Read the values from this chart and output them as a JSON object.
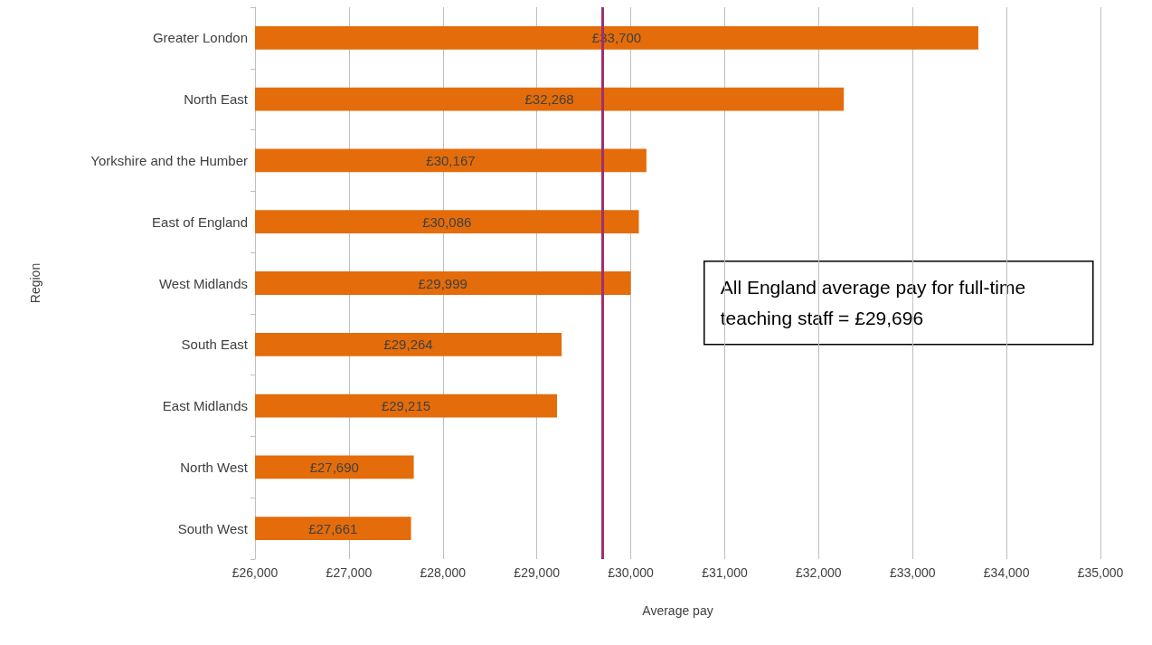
{
  "chart_data": {
    "type": "bar",
    "orientation": "horizontal",
    "xlabel": "Average pay",
    "ylabel": "Region",
    "categories": [
      "Greater London",
      "North East",
      "Yorkshire and the Humber",
      "East of England",
      "West Midlands",
      "South East",
      "East Midlands",
      "North West",
      "South West"
    ],
    "values": [
      33700,
      32268,
      30167,
      30086,
      29999,
      29264,
      29215,
      27690,
      27661
    ],
    "value_labels": [
      "£33,700",
      "£32,268",
      "£30,167",
      "£30,086",
      "£29,999",
      "£29,264",
      "£29,215",
      "£27,690",
      "£27,661"
    ],
    "color": "#e46c0a",
    "xlim": [
      26000,
      35000
    ],
    "xticks": [
      {
        "value": 26000,
        "label": "£26,000"
      },
      {
        "value": 27000,
        "label": "£27,000"
      },
      {
        "value": 28000,
        "label": "£28,000"
      },
      {
        "value": 29000,
        "label": "£29,000"
      },
      {
        "value": 30000,
        "label": "£30,000"
      },
      {
        "value": 31000,
        "label": "£31,000"
      },
      {
        "value": 32000,
        "label": "£32,000"
      },
      {
        "value": 33000,
        "label": "£33,000"
      },
      {
        "value": 34000,
        "label": "£34,000"
      },
      {
        "value": 35000,
        "label": "£35,000"
      }
    ],
    "grid": "x",
    "ref_lines": [
      {
        "axis": "x",
        "value": 29696,
        "color": "#a0306e"
      }
    ],
    "annotations": [
      "All England average pay for full-time teaching staff = £29,696"
    ]
  }
}
